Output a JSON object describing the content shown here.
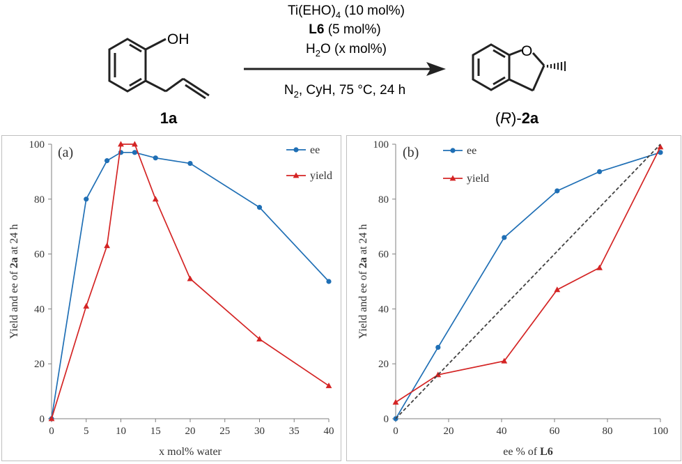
{
  "scheme": {
    "reactant": {
      "oh_label": "OH",
      "code": "1a"
    },
    "product": {
      "o_label": "O",
      "stereo_prefix": "(",
      "stereo_letter": "R",
      "stereo_suffix": ")-",
      "code": "2a"
    },
    "conditions": {
      "line1_main": "Ti(EHO)",
      "line1_sub": "4",
      "line1_tail": " (10 mol%)",
      "line2_bold": "L6",
      "line2_tail": " (5 mol%)",
      "line3_main": "H",
      "line3_sub": "2",
      "line3_tail": "O (x mol%)",
      "line4_main": "N",
      "line4_sub": "2",
      "line4_tail": ", CyH, 75 °C, 24 h"
    }
  },
  "colors": {
    "ee": "#1f6fb5",
    "yield": "#d42424",
    "diagonal": "#404040",
    "axis": "#7f7f7f",
    "panel_border": "#bfbfbf"
  },
  "chart_data": [
    {
      "type": "line",
      "panel_label": "(a)",
      "xlabel": "x mol% water",
      "ylabel_parts": [
        "Yield and ee of ",
        "2a",
        " at 24 h"
      ],
      "xlim": [
        0,
        40
      ],
      "ylim": [
        0,
        100
      ],
      "xticks": [
        0,
        5,
        10,
        15,
        20,
        25,
        30,
        35,
        40
      ],
      "yticks": [
        0,
        20,
        40,
        60,
        80,
        100
      ],
      "grid": false,
      "legend_position": "top-right",
      "series": [
        {
          "name": "ee",
          "marker": "circle",
          "points": [
            [
              0,
              0
            ],
            [
              5,
              80
            ],
            [
              8,
              94
            ],
            [
              10,
              97
            ],
            [
              12,
              97
            ],
            [
              15,
              95
            ],
            [
              20,
              93
            ],
            [
              30,
              77
            ],
            [
              40,
              50
            ]
          ]
        },
        {
          "name": "yield",
          "marker": "triangle",
          "points": [
            [
              0,
              0
            ],
            [
              5,
              41
            ],
            [
              8,
              63
            ],
            [
              10,
              100
            ],
            [
              12,
              100
            ],
            [
              15,
              80
            ],
            [
              20,
              51
            ],
            [
              30,
              29
            ],
            [
              40,
              12
            ]
          ]
        }
      ]
    },
    {
      "type": "line",
      "panel_label": "(b)",
      "xlabel_parts": [
        "ee % of ",
        "L6"
      ],
      "ylabel_parts": [
        "Yield and ee of ",
        "2a",
        " at 24 h"
      ],
      "xlim": [
        0,
        100
      ],
      "ylim": [
        0,
        100
      ],
      "xticks": [
        0,
        20,
        40,
        60,
        80,
        100
      ],
      "xtick_labels": [
        "0",
        "20",
        "40",
        "60",
        "80",
        "100"
      ],
      "yticks": [
        0,
        20,
        40,
        60,
        80,
        100
      ],
      "grid": false,
      "legend_position": "top-left",
      "series": [
        {
          "name": "ee",
          "marker": "circle",
          "points": [
            [
              0,
              0
            ],
            [
              16,
              26
            ],
            [
              41,
              66
            ],
            [
              61,
              83
            ],
            [
              77,
              90
            ],
            [
              100,
              97
            ]
          ]
        },
        {
          "name": "yield",
          "marker": "triangle",
          "points": [
            [
              0,
              6
            ],
            [
              16,
              16
            ],
            [
              41,
              21
            ],
            [
              61,
              47
            ],
            [
              77,
              55
            ],
            [
              100,
              99
            ]
          ]
        },
        {
          "marker": "none",
          "dashed": true,
          "points": [
            [
              0,
              0
            ],
            [
              100,
              100
            ]
          ]
        }
      ]
    }
  ]
}
